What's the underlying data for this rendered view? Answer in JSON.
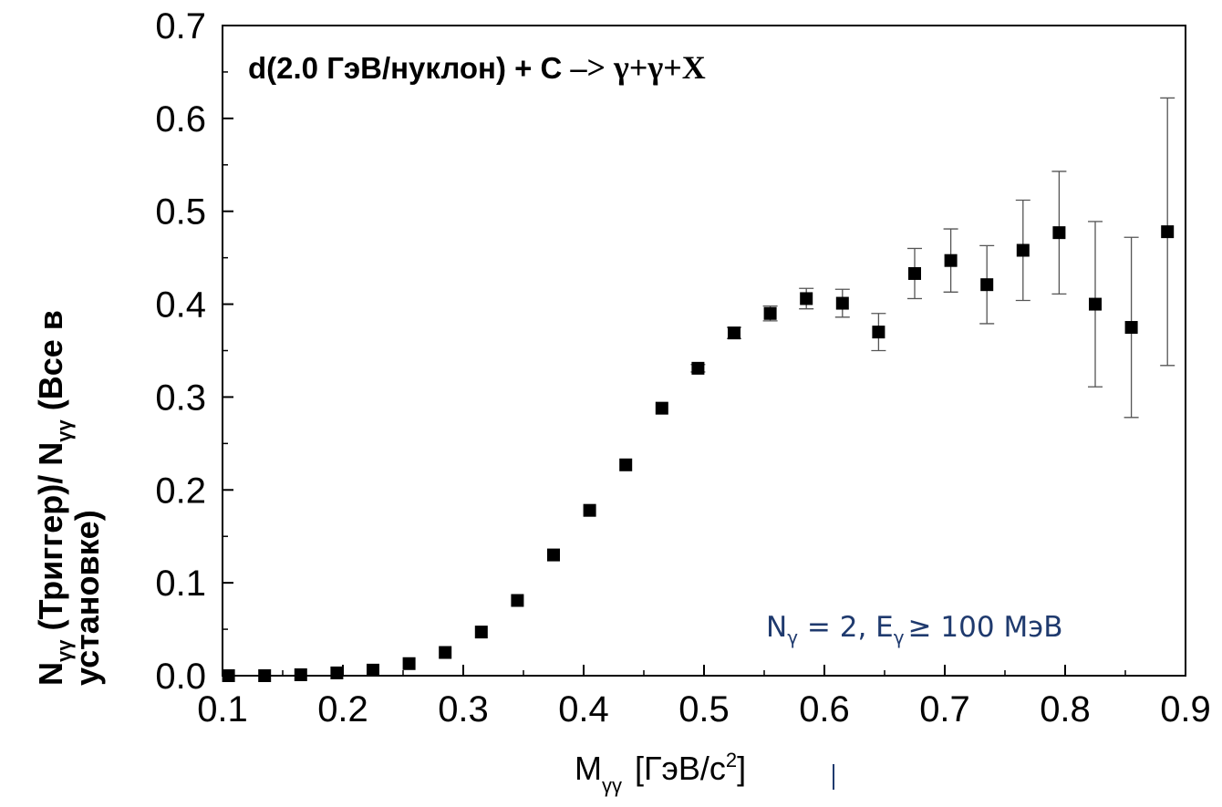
{
  "chart_data": {
    "type": "scatter",
    "title": {
      "prefix": "d(2.0 ГэВ/нуклон) + C ",
      "reaction": "–> γ+γ+X"
    },
    "annotation": {
      "n_base": "N",
      "n_sub": "γ",
      "n_mid": " = 2, E",
      "e_sub": "γ",
      "e_rest": "≥ 100 МэВ"
    },
    "xlabel": {
      "base": "M",
      "sub": "γγ",
      "unit_prefix": " [ГэВ/c",
      "unit_sup": "2",
      "unit_suffix": "]"
    },
    "ylabel": {
      "line1_a": "N",
      "line1_sub1": "γγ",
      "line1_b": " (Триггер)/ N",
      "line1_sub2": "γγ",
      "line1_c": " (Все в",
      "line2": "установке)"
    },
    "x_ticks": [
      "0.1",
      "0.2",
      "0.3",
      "0.4",
      "0.5",
      "0.6",
      "0.7",
      "0.8",
      "0.9"
    ],
    "y_ticks": [
      "0.0",
      "0.1",
      "0.2",
      "0.3",
      "0.4",
      "0.5",
      "0.6",
      "0.7"
    ],
    "xlim": [
      0.1,
      0.9
    ],
    "ylim": [
      0.0,
      0.7
    ],
    "points": [
      {
        "x": 0.105,
        "y": 0.0,
        "err": 0.0
      },
      {
        "x": 0.135,
        "y": 0.0,
        "err": 0.0
      },
      {
        "x": 0.165,
        "y": 0.001,
        "err": 0.0
      },
      {
        "x": 0.195,
        "y": 0.003,
        "err": 0.0
      },
      {
        "x": 0.225,
        "y": 0.006,
        "err": 0.0
      },
      {
        "x": 0.255,
        "y": 0.013,
        "err": 0.0
      },
      {
        "x": 0.285,
        "y": 0.025,
        "err": 0.0
      },
      {
        "x": 0.315,
        "y": 0.047,
        "err": 0.0
      },
      {
        "x": 0.345,
        "y": 0.081,
        "err": 0.0
      },
      {
        "x": 0.375,
        "y": 0.13,
        "err": 0.0
      },
      {
        "x": 0.405,
        "y": 0.178,
        "err": 0.0
      },
      {
        "x": 0.435,
        "y": 0.227,
        "err": 0.0
      },
      {
        "x": 0.465,
        "y": 0.288,
        "err": 0.0
      },
      {
        "x": 0.495,
        "y": 0.331,
        "err": 0.004
      },
      {
        "x": 0.525,
        "y": 0.369,
        "err": 0.006
      },
      {
        "x": 0.555,
        "y": 0.39,
        "err": 0.008
      },
      {
        "x": 0.585,
        "y": 0.406,
        "err": 0.011
      },
      {
        "x": 0.615,
        "y": 0.401,
        "err": 0.015
      },
      {
        "x": 0.645,
        "y": 0.37,
        "err": 0.02
      },
      {
        "x": 0.675,
        "y": 0.433,
        "err": 0.027
      },
      {
        "x": 0.705,
        "y": 0.447,
        "err": 0.034
      },
      {
        "x": 0.735,
        "y": 0.421,
        "err": 0.042
      },
      {
        "x": 0.765,
        "y": 0.458,
        "err": 0.054
      },
      {
        "x": 0.795,
        "y": 0.477,
        "err": 0.066
      },
      {
        "x": 0.825,
        "y": 0.4,
        "err": 0.089
      },
      {
        "x": 0.855,
        "y": 0.375,
        "err": 0.097
      },
      {
        "x": 0.885,
        "y": 0.478,
        "err": 0.144
      }
    ],
    "marker": "filled-square",
    "marker_color": "#000000",
    "annotation_color": "#1f3a6e",
    "grid": false
  }
}
